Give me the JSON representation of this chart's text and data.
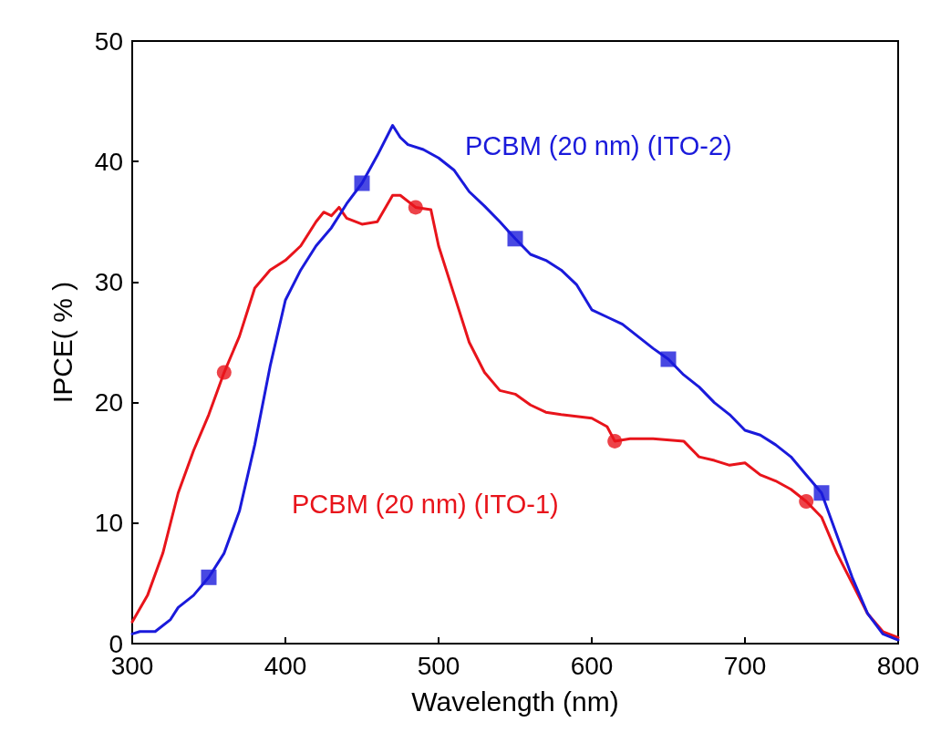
{
  "chart_data": {
    "type": "line",
    "xlabel": "Wavelength (nm)",
    "ylabel": "IPCE( % )",
    "xlim": [
      300,
      800
    ],
    "xticks": [
      300,
      400,
      500,
      600,
      700,
      800
    ],
    "ylim": [
      0,
      50
    ],
    "yticks": [
      0,
      10,
      20,
      30,
      40,
      50
    ],
    "grid": false,
    "annotations": [
      "PCBM (20 nm) (ITO-1)",
      "PCBM (20 nm) (ITO-2)"
    ],
    "series": [
      {
        "color": "#e8141b",
        "marker": "none",
        "x": [
          300,
          310,
          320,
          330,
          340,
          350,
          360,
          370,
          380,
          390,
          400,
          410,
          420,
          425,
          430,
          435,
          440,
          450,
          460,
          470,
          475,
          485,
          495,
          500,
          510,
          520,
          530,
          540,
          550,
          560,
          570,
          580,
          600,
          610,
          615,
          625,
          640,
          660,
          670,
          680,
          690,
          700,
          710,
          720,
          730,
          740,
          750,
          760,
          770,
          780,
          790,
          800
        ],
        "values": [
          1.8,
          4,
          7.5,
          12.5,
          16,
          19,
          22.5,
          25.5,
          29.5,
          31,
          31.8,
          33,
          35,
          35.8,
          35.5,
          36.2,
          35.3,
          34.8,
          35,
          37.2,
          37.2,
          36.2,
          36,
          33,
          29,
          25,
          22.5,
          21,
          20.7,
          19.8,
          19.2,
          19,
          18.7,
          18,
          16.8,
          17,
          17,
          16.8,
          15.5,
          15.2,
          14.8,
          15,
          14,
          13.5,
          12.8,
          11.8,
          10.5,
          7.5,
          5,
          2.5,
          1,
          0.5
        ]
      },
      {
        "color": "#1a1adb",
        "marker": "none",
        "x": [
          300,
          305,
          315,
          325,
          330,
          340,
          350,
          360,
          370,
          380,
          390,
          400,
          410,
          420,
          430,
          440,
          450,
          460,
          470,
          475,
          480,
          490,
          500,
          510,
          520,
          530,
          540,
          550,
          560,
          570,
          580,
          590,
          600,
          610,
          620,
          630,
          640,
          650,
          660,
          670,
          680,
          690,
          700,
          710,
          720,
          730,
          740,
          750,
          760,
          770,
          780,
          790,
          800
        ],
        "values": [
          0.8,
          1,
          1,
          2,
          3,
          4,
          5.5,
          7.5,
          11,
          16.5,
          23,
          28.5,
          31,
          33,
          34.5,
          36.5,
          38.2,
          40.5,
          43,
          42,
          41.4,
          41,
          40.3,
          39.3,
          37.5,
          36.3,
          35,
          33.6,
          32.3,
          31.8,
          31,
          29.8,
          27.7,
          27.1,
          26.5,
          25.5,
          24.5,
          23.6,
          22.3,
          21.3,
          20,
          19,
          17.7,
          17.3,
          16.5,
          15.5,
          14,
          12.5,
          9,
          5.5,
          2.5,
          0.8,
          0.3
        ]
      },
      {
        "type": "scatter",
        "color": "#e8141b",
        "marker": "circle",
        "x": [
          360,
          485,
          615,
          740
        ],
        "values": [
          22.5,
          36.2,
          16.8,
          11.8
        ]
      },
      {
        "type": "scatter",
        "color": "#1a1adb",
        "marker": "square",
        "x": [
          350,
          450,
          550,
          650,
          750
        ],
        "values": [
          5.5,
          38.2,
          33.6,
          23.6,
          12.5
        ]
      }
    ]
  }
}
